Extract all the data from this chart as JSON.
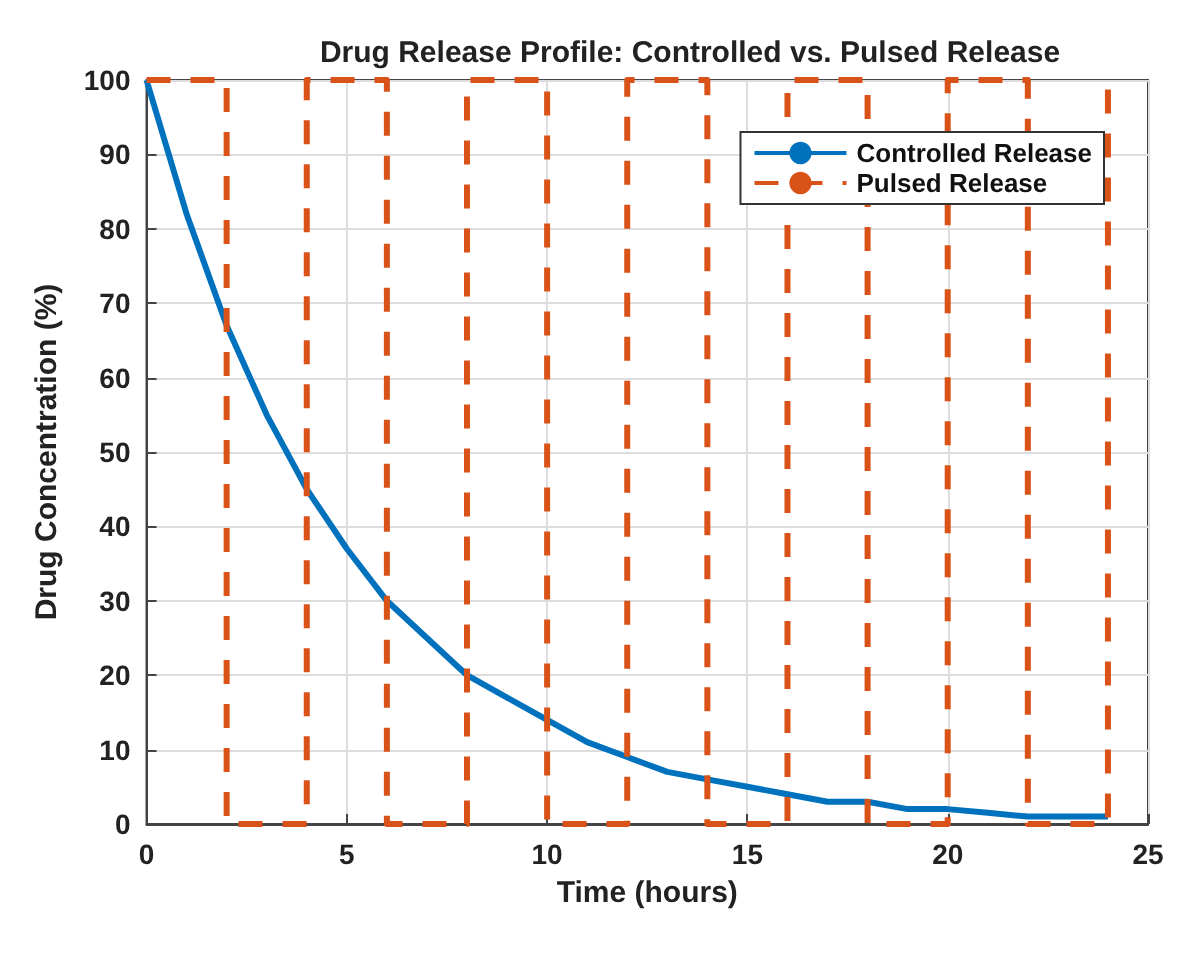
{
  "chart_data": {
    "type": "line",
    "title": "Drug Release Profile: Controlled vs. Pulsed Release",
    "xlabel": "Time (hours)",
    "ylabel": "Drug Concentration (%)",
    "xlim": [
      0,
      25
    ],
    "xticks": [
      0,
      5,
      10,
      15,
      20,
      25
    ],
    "ylim": [
      0,
      100
    ],
    "yticks": [
      0,
      10,
      20,
      30,
      40,
      50,
      60,
      70,
      80,
      90,
      100
    ],
    "grid": true,
    "legend": "top right",
    "marker": "none",
    "series": [
      {
        "name": "Controlled Release",
        "color": "#0072bd",
        "line_style": "solid",
        "x": [
          0,
          1,
          2,
          3,
          4,
          5,
          6,
          7,
          8,
          9,
          10,
          11,
          12,
          13,
          14,
          15,
          16,
          17,
          18,
          19,
          20,
          21,
          22,
          23,
          24
        ],
        "values": [
          100,
          82,
          67,
          55,
          45,
          37,
          30,
          25,
          20,
          17,
          14,
          11,
          9,
          7,
          6,
          5,
          4,
          3,
          3,
          2,
          2,
          1.5,
          1,
          1,
          1
        ]
      },
      {
        "name": "Pulsed Release",
        "color": "#d95319",
        "line_style": "dashed",
        "x": [
          0,
          2,
          2,
          4,
          4,
          6,
          6,
          8,
          8,
          10,
          10,
          12,
          12,
          14,
          14,
          16,
          16,
          18,
          18,
          20,
          20,
          22,
          22,
          24,
          24
        ],
        "values": [
          100,
          100,
          0,
          0,
          100,
          100,
          0,
          0,
          100,
          100,
          0,
          0,
          100,
          100,
          0,
          0,
          100,
          100,
          0,
          0,
          100,
          100,
          0,
          0,
          100
        ]
      }
    ]
  }
}
